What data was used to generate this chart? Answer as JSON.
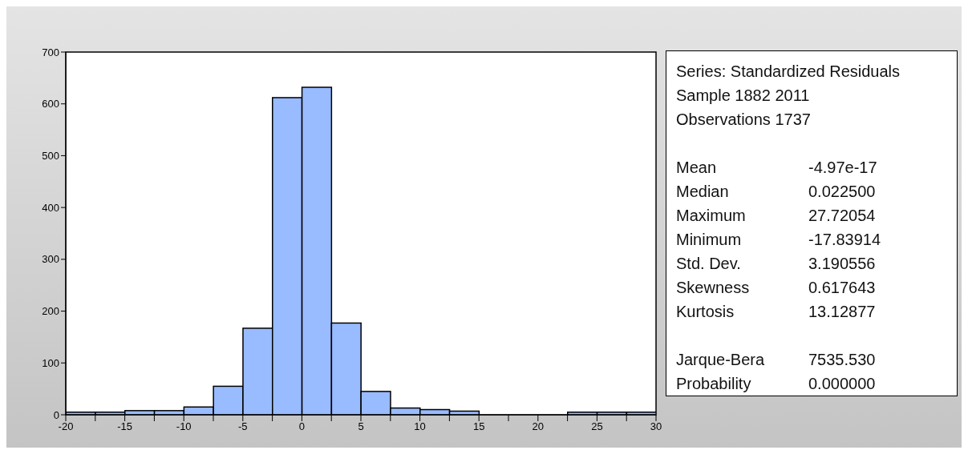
{
  "chart_data": {
    "type": "histogram",
    "bins": [
      -20,
      -17.5,
      -15,
      -12.5,
      -10,
      -7.5,
      -5,
      -2.5,
      0,
      2.5,
      5,
      7.5,
      10,
      12.5,
      15,
      17.5,
      20,
      22.5,
      25,
      27.5,
      30
    ],
    "values": [
      5,
      5,
      8,
      8,
      15,
      55,
      167,
      612,
      632,
      177,
      45,
      13,
      10,
      7,
      0,
      0,
      0,
      5,
      5,
      5
    ],
    "color": "#99bbff",
    "xlim": [
      -20,
      30
    ],
    "xticks": [
      -20,
      {
        "value": -17.5,
        "label": null
      },
      -15,
      {
        "value": -12.5,
        "label": null
      },
      -10,
      {
        "value": -7.5,
        "label": null
      },
      -5,
      {
        "value": -2.5,
        "label": null
      },
      0,
      {
        "value": 2.5,
        "label": null
      },
      5,
      {
        "value": 7.5,
        "label": null
      },
      10,
      {
        "value": 12.5,
        "label": null
      },
      15,
      {
        "value": 17.5,
        "label": null
      },
      20,
      {
        "value": 22.5,
        "label": null
      },
      25,
      {
        "value": 27.5,
        "label": null
      },
      30
    ],
    "ylim": [
      0,
      700
    ],
    "yticks": [
      0,
      100,
      200,
      300,
      400,
      500,
      600,
      700
    ],
    "grid": false,
    "legend": false,
    "annotations": [
      "Series: Standardized Residuals",
      "Sample 1882 2011",
      "Observations 1737",
      "Mean",
      "-4.97e-17",
      "Median",
      "0.022500",
      "Maximum",
      "27.72054",
      "Minimum",
      "-17.83914",
      "Std. Dev.",
      "3.190556",
      "Skewness",
      "0.617643",
      "Kurtosis",
      "13.12877",
      "Jarque-Bera",
      "7535.530",
      "Probability",
      "0.000000"
    ]
  }
}
